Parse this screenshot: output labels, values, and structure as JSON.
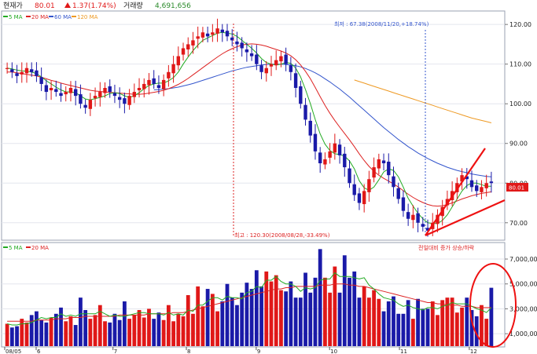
{
  "header": {
    "price_label": "현재가",
    "price_value": "80.01",
    "change_value": "1.37(1.74%)",
    "volume_label": "거래량",
    "volume_value": "4,691,656"
  },
  "legend_price": [
    {
      "label": "5 MA",
      "color": "#22aa22"
    },
    {
      "label": "20 MA",
      "color": "#dd2222"
    },
    {
      "label": "60 MA",
      "color": "#3355cc"
    },
    {
      "label": "120 MA",
      "color": "#ee9922"
    }
  ],
  "legend_volume": [
    {
      "label": "5 MA",
      "color": "#22aa22"
    },
    {
      "label": "20 MA",
      "color": "#dd2222"
    }
  ],
  "annotations": {
    "low_label": "최저 : 67.38(2008/11/20,+18.74%)",
    "high_label": "최고 : 120.30(2008/08/28,-33.49%)",
    "volume_note": "전일대비 증가 상승/하락",
    "current_price_tag": "80.01"
  },
  "colors": {
    "up": "#e01818",
    "down": "#1a1aa8",
    "ma5": "#22aa22",
    "ma20": "#dd2222",
    "ma60": "#3355cc",
    "ma120": "#ee9922",
    "overlay": "#ee1111"
  },
  "chart_data": [
    {
      "type": "candlestick",
      "y_ticks": [
        "120.00",
        "110.00",
        "100.00",
        "90.00",
        "80.00",
        "70.00"
      ],
      "ylim": [
        66,
        123
      ],
      "x_ticks": [
        "08/05",
        "6",
        "7",
        "8",
        "9",
        "10",
        "11",
        "12"
      ],
      "close_path": [
        109,
        108,
        107,
        108,
        109,
        108,
        107,
        105,
        103,
        104,
        103,
        102,
        103,
        104,
        102,
        100,
        99,
        101,
        102,
        103,
        104,
        103,
        102,
        101,
        100,
        102,
        103,
        104,
        105,
        106,
        105,
        104,
        106,
        108,
        110,
        112,
        114,
        115,
        116,
        117,
        118,
        117,
        118,
        119,
        118,
        117,
        116,
        115,
        114,
        113,
        112,
        110,
        108,
        109,
        110,
        111,
        112,
        110,
        108,
        104,
        100,
        96,
        92,
        88,
        85,
        86,
        88,
        90,
        87,
        84,
        80,
        77,
        75,
        78,
        81,
        84,
        86,
        85,
        82,
        79,
        76,
        73,
        71,
        72,
        70,
        69,
        68,
        70,
        72,
        74,
        76,
        78,
        80,
        82,
        81,
        79,
        78,
        79,
        80,
        80.01
      ],
      "ma5": [
        109,
        108.8,
        108.5,
        108.3,
        108.2,
        108,
        107.6,
        106.8,
        105.8,
        105,
        104.2,
        103.5,
        103,
        103,
        102.8,
        102,
        101.2,
        101,
        101.3,
        101.6,
        102,
        102.6,
        102.8,
        102.6,
        102,
        101.6,
        102,
        102.8,
        103.8,
        104.6,
        105,
        105.2,
        105.2,
        105.8,
        106.6,
        108,
        110,
        111.8,
        113.4,
        114.8,
        116,
        116.6,
        117.2,
        117.8,
        118,
        117.8,
        117.6,
        117,
        116,
        115,
        114,
        112.8,
        111.4,
        110.4,
        110,
        109.8,
        110,
        110.4,
        110.2,
        109,
        106.8,
        103.6,
        100,
        96,
        92.4,
        89.8,
        88.2,
        87.4,
        87.2,
        86.8,
        85.6,
        83.6,
        80.6,
        78.8,
        78.2,
        79,
        80.8,
        82.8,
        83.6,
        83.2,
        81.6,
        79,
        76.2,
        74.2,
        72.4,
        71,
        70,
        69.8,
        69.8,
        70.6,
        72,
        74,
        76,
        78,
        79.4,
        80,
        80,
        79.6,
        79.2,
        79.2
      ],
      "ma20": [
        108,
        108,
        107.8,
        107.6,
        107.4,
        107.2,
        107,
        106.7,
        106.3,
        105.9,
        105.6,
        105.2,
        104.9,
        104.6,
        104.3,
        104,
        103.7,
        103.4,
        103.2,
        103.1,
        103,
        102.9,
        102.8,
        102.7,
        102.6,
        102.5,
        102.4,
        102.4,
        102.5,
        102.7,
        102.9,
        103.1,
        103.4,
        103.8,
        104.3,
        104.9,
        105.6,
        106.4,
        107.3,
        108.2,
        109.1,
        110,
        110.9,
        111.8,
        112.6,
        113.3,
        113.9,
        114.4,
        114.8,
        115,
        115.1,
        115,
        114.8,
        114.5,
        114.1,
        113.7,
        113.3,
        112.8,
        112.1,
        111.1,
        109.8,
        108.2,
        106.3,
        104.1,
        101.8,
        99.6,
        97.6,
        95.8,
        94.1,
        92.5,
        90.9,
        89.2,
        87.4,
        85.7,
        84.2,
        83,
        82,
        81.2,
        80.5,
        79.8,
        79,
        78.1,
        77.2,
        76.4,
        75.7,
        75.1,
        74.6,
        74.3,
        74.2,
        74.3,
        74.6,
        75,
        75.5,
        76,
        76.4,
        76.8,
        77.1,
        77.4,
        77.6,
        77.8
      ],
      "ma60": [
        null,
        null,
        null,
        null,
        null,
        null,
        null,
        null,
        null,
        null,
        null,
        null,
        null,
        null,
        null,
        null,
        null,
        null,
        null,
        null,
        null,
        null,
        null,
        null,
        null,
        null,
        null,
        null,
        null,
        null,
        103.5,
        103.6,
        103.7,
        103.8,
        104,
        104.2,
        104.5,
        104.8,
        105.1,
        105.5,
        105.9,
        106.3,
        106.7,
        107.1,
        107.5,
        107.9,
        108.3,
        108.6,
        108.9,
        109.2,
        109.4,
        109.6,
        109.8,
        109.9,
        110,
        110,
        110,
        109.9,
        109.8,
        109.6,
        109.3,
        108.9,
        108.4,
        107.8,
        107.1,
        106.3,
        105.5,
        104.6,
        103.7,
        102.7,
        101.7,
        100.6,
        99.5,
        98.4,
        97.3,
        96.2,
        95.1,
        94,
        93,
        92,
        91,
        90.1,
        89.2,
        88.4,
        87.6,
        86.9,
        86.2,
        85.6,
        85,
        84.5,
        84,
        83.6,
        83.2,
        82.9,
        82.6,
        82.3,
        82.1,
        81.9,
        81.7,
        81.6
      ],
      "ma120": [
        null,
        null,
        null,
        null,
        null,
        null,
        null,
        null,
        null,
        null,
        null,
        null,
        null,
        null,
        null,
        null,
        null,
        null,
        null,
        null,
        null,
        null,
        null,
        null,
        null,
        null,
        null,
        null,
        null,
        null,
        null,
        null,
        null,
        null,
        null,
        null,
        null,
        null,
        null,
        null,
        null,
        null,
        null,
        null,
        null,
        null,
        null,
        null,
        null,
        null,
        null,
        null,
        null,
        null,
        null,
        null,
        null,
        null,
        null,
        null,
        null,
        null,
        null,
        null,
        null,
        null,
        null,
        null,
        null,
        null,
        null,
        106,
        105.6,
        105.2,
        104.8,
        104.4,
        104,
        103.6,
        103.2,
        102.8,
        102.4,
        102,
        101.6,
        101.2,
        100.8,
        100.4,
        100,
        99.6,
        99.2,
        98.8,
        98.4,
        98,
        97.6,
        97.2,
        96.8,
        96.4,
        96.1,
        95.8,
        95.5,
        95.2
      ]
    },
    {
      "type": "bar",
      "y_ticks": [
        "7,000,000",
        "5,000,000",
        "3,000,000",
        "1,000,000"
      ],
      "ylim": [
        0,
        8200000
      ],
      "values": [
        1800000,
        1500000,
        1600000,
        2200000,
        1900000,
        2500000,
        2800000,
        2100000,
        1900000,
        2300000,
        2600000,
        3100000,
        2000000,
        2400000,
        1700000,
        3900000,
        2900000,
        2200000,
        2500000,
        3300000,
        2000000,
        1900000,
        2600000,
        2100000,
        3600000,
        2200000,
        2500000,
        2900000,
        2300000,
        3000000,
        2200000,
        2700000,
        2100000,
        3300000,
        2000000,
        2600000,
        2400000,
        4100000,
        2600000,
        4800000,
        3200000,
        4600000,
        4200000,
        2800000,
        3600000,
        5000000,
        3900000,
        3300000,
        4300000,
        5100000,
        4600000,
        6100000,
        4800000,
        6000000,
        5200000,
        5700000,
        4500000,
        4400000,
        5200000,
        3900000,
        3900000,
        5900000,
        4300000,
        5500000,
        7800000,
        5500000,
        4300000,
        6400000,
        4300000,
        7300000,
        5500000,
        6000000,
        3900000,
        4800000,
        3900000,
        4500000,
        3800000,
        2800000,
        3600000,
        4000000,
        2600000,
        2600000,
        3700000,
        2200000,
        3800000,
        3000000,
        3000000,
        3600000,
        2500000,
        3700000,
        3900000,
        3900000,
        2700000,
        3100000,
        3900000,
        2900000,
        2400000,
        3300000,
        2200000,
        4691656
      ],
      "ma5": [
        1800000,
        1700000,
        1700000,
        1800000,
        1800000,
        1900000,
        2100000,
        2300000,
        2200000,
        2300000,
        2300000,
        2600000,
        2400000,
        2500000,
        2400000,
        2600000,
        2600000,
        2600000,
        2600000,
        2800000,
        2600000,
        2400000,
        2500000,
        2400000,
        2400000,
        2500000,
        2600000,
        2700000,
        2700000,
        2600000,
        2600000,
        2600000,
        2500000,
        2700000,
        2500000,
        2600000,
        2500000,
        2900000,
        2800000,
        3300000,
        3300000,
        3600000,
        3900000,
        3900000,
        3700000,
        4000000,
        3900000,
        3900000,
        3800000,
        4300000,
        4400000,
        4800000,
        4700000,
        5300000,
        5300000,
        5600000,
        5200000,
        5000000,
        5000000,
        4800000,
        4400000,
        4700000,
        4600000,
        4700000,
        5300000,
        5400000,
        5400000,
        5900000,
        5600000,
        5600000,
        5600000,
        5500000,
        5400000,
        5500000,
        4900000,
        4600000,
        4200000,
        3900000,
        3800000,
        3700000,
        3400000,
        3200000,
        3300000,
        3100000,
        3000000,
        2900000,
        3100000,
        3100000,
        3000000,
        3200000,
        3300000,
        3500000,
        3400000,
        3400000,
        3400000,
        3200000,
        3000000,
        2900000,
        2700000,
        3100000
      ],
      "ma20": [
        2000000,
        2000000,
        2000000,
        2000000,
        2000000,
        2000000,
        2100000,
        2100000,
        2100000,
        2100000,
        2200000,
        2200000,
        2200000,
        2300000,
        2300000,
        2300000,
        2400000,
        2400000,
        2400000,
        2400000,
        2400000,
        2400000,
        2400000,
        2500000,
        2500000,
        2500000,
        2500000,
        2500000,
        2500000,
        2600000,
        2600000,
        2600000,
        2600000,
        2600000,
        2700000,
        2700000,
        2700000,
        2800000,
        2900000,
        3000000,
        3100000,
        3200000,
        3300000,
        3400000,
        3500000,
        3600000,
        3700000,
        3800000,
        3900000,
        4000000,
        4100000,
        4200000,
        4300000,
        4400000,
        4500000,
        4600000,
        4600000,
        4700000,
        4700000,
        4800000,
        4800000,
        4800000,
        4800000,
        4800000,
        4900000,
        4900000,
        4900000,
        5000000,
        5000000,
        5000000,
        4900000,
        4900000,
        4800000,
        4800000,
        4700000,
        4600000,
        4500000,
        4400000,
        4300000,
        4200000,
        4100000,
        4000000,
        3900000,
        3800000,
        3700000,
        3600000,
        3500000,
        3500000,
        3400000,
        3400000,
        3300000,
        3300000,
        3300000,
        3200000,
        3200000,
        3200000,
        3100000,
        3100000,
        3100000,
        3100000
      ]
    }
  ]
}
